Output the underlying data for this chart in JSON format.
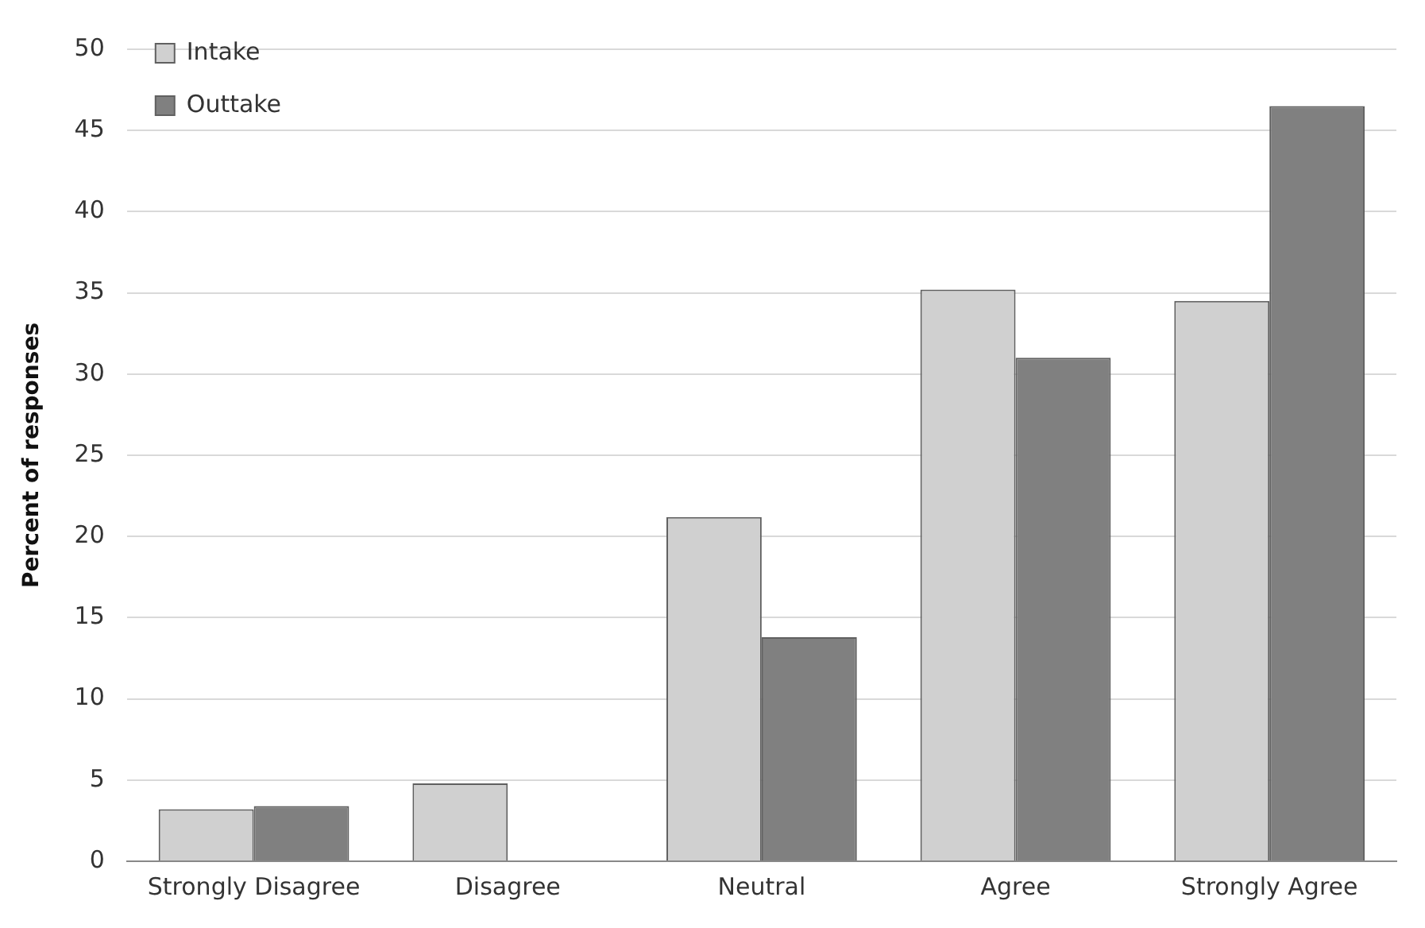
{
  "chart_data": {
    "type": "bar",
    "ylabel": "Percent of responses",
    "categories": [
      "Strongly Disagree",
      "Disagree",
      "Neutral",
      "Agree",
      "Strongly Agree"
    ],
    "series": [
      {
        "name": "Intake",
        "color": "#d0d0d0",
        "values": [
          3.2,
          4.8,
          21.2,
          35.2,
          34.5
        ]
      },
      {
        "name": "Outtake",
        "color": "#808080",
        "values": [
          3.4,
          0,
          13.8,
          31.0,
          46.5
        ]
      }
    ],
    "ylim": [
      0,
      50
    ],
    "yticks": [
      0,
      5,
      10,
      15,
      20,
      25,
      30,
      35,
      40,
      45,
      50
    ],
    "grid": "y",
    "legend": "top left"
  }
}
